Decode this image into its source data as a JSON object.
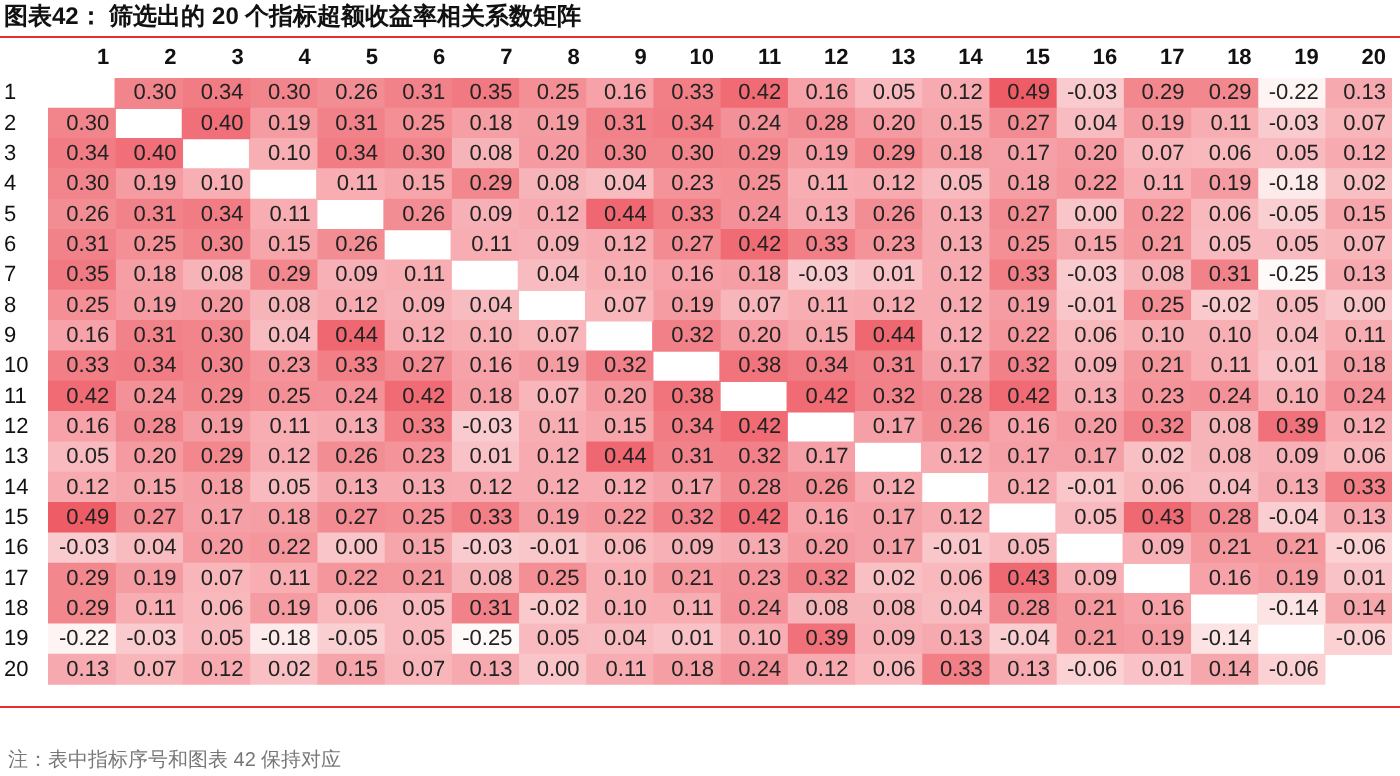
{
  "chart_data": {
    "type": "heatmap",
    "title": "图表42： 筛选出的 20 个指标超额收益率相关系数矩阵",
    "categories": [
      "1",
      "2",
      "3",
      "4",
      "5",
      "6",
      "7",
      "8",
      "9",
      "10",
      "11",
      "12",
      "13",
      "14",
      "15",
      "16",
      "17",
      "18",
      "19",
      "20"
    ],
    "y_categories": [
      "1",
      "2",
      "3",
      "4",
      "5",
      "6",
      "7",
      "8",
      "9",
      "10",
      "11",
      "12",
      "13",
      "14",
      "15",
      "16",
      "17",
      "18",
      "19",
      "20"
    ],
    "cells": [
      [
        null,
        0.3,
        0.34,
        0.3,
        0.26,
        0.31,
        0.35,
        0.25,
        0.16,
        0.33,
        0.42,
        0.16,
        0.05,
        0.12,
        0.49,
        -0.03,
        0.29,
        0.29,
        -0.22,
        0.13
      ],
      [
        0.3,
        null,
        0.4,
        0.19,
        0.31,
        0.25,
        0.18,
        0.19,
        0.31,
        0.34,
        0.24,
        0.28,
        0.2,
        0.15,
        0.27,
        0.04,
        0.19,
        0.11,
        -0.03,
        0.07
      ],
      [
        0.34,
        0.4,
        null,
        0.1,
        0.34,
        0.3,
        0.08,
        0.2,
        0.3,
        0.3,
        0.29,
        0.19,
        0.29,
        0.18,
        0.17,
        0.2,
        0.07,
        0.06,
        0.05,
        0.12
      ],
      [
        0.3,
        0.19,
        0.1,
        null,
        0.11,
        0.15,
        0.29,
        0.08,
        0.04,
        0.23,
        0.25,
        0.11,
        0.12,
        0.05,
        0.18,
        0.22,
        0.11,
        0.19,
        -0.18,
        0.02
      ],
      [
        0.26,
        0.31,
        0.34,
        0.11,
        null,
        0.26,
        0.09,
        0.12,
        0.44,
        0.33,
        0.24,
        0.13,
        0.26,
        0.13,
        0.27,
        0.0,
        0.22,
        0.06,
        -0.05,
        0.15
      ],
      [
        0.31,
        0.25,
        0.3,
        0.15,
        0.26,
        null,
        0.11,
        0.09,
        0.12,
        0.27,
        0.42,
        0.33,
        0.23,
        0.13,
        0.25,
        0.15,
        0.21,
        0.05,
        0.05,
        0.07
      ],
      [
        0.35,
        0.18,
        0.08,
        0.29,
        0.09,
        0.11,
        null,
        0.04,
        0.1,
        0.16,
        0.18,
        -0.03,
        0.01,
        0.12,
        0.33,
        -0.03,
        0.08,
        0.31,
        -0.25,
        0.13
      ],
      [
        0.25,
        0.19,
        0.2,
        0.08,
        0.12,
        0.09,
        0.04,
        null,
        0.07,
        0.19,
        0.07,
        0.11,
        0.12,
        0.12,
        0.19,
        -0.01,
        0.25,
        -0.02,
        0.05,
        0.0
      ],
      [
        0.16,
        0.31,
        0.3,
        0.04,
        0.44,
        0.12,
        0.1,
        0.07,
        null,
        0.32,
        0.2,
        0.15,
        0.44,
        0.12,
        0.22,
        0.06,
        0.1,
        0.1,
        0.04,
        0.11
      ],
      [
        0.33,
        0.34,
        0.3,
        0.23,
        0.33,
        0.27,
        0.16,
        0.19,
        0.32,
        null,
        0.38,
        0.34,
        0.31,
        0.17,
        0.32,
        0.09,
        0.21,
        0.11,
        0.01,
        0.18
      ],
      [
        0.42,
        0.24,
        0.29,
        0.25,
        0.24,
        0.42,
        0.18,
        0.07,
        0.2,
        0.38,
        null,
        0.42,
        0.32,
        0.28,
        0.42,
        0.13,
        0.23,
        0.24,
        0.1,
        0.24
      ],
      [
        0.16,
        0.28,
        0.19,
        0.11,
        0.13,
        0.33,
        -0.03,
        0.11,
        0.15,
        0.34,
        0.42,
        null,
        0.17,
        0.26,
        0.16,
        0.2,
        0.32,
        0.08,
        0.39,
        0.12
      ],
      [
        0.05,
        0.2,
        0.29,
        0.12,
        0.26,
        0.23,
        0.01,
        0.12,
        0.44,
        0.31,
        0.32,
        0.17,
        null,
        0.12,
        0.17,
        0.17,
        0.02,
        0.08,
        0.09,
        0.06
      ],
      [
        0.12,
        0.15,
        0.18,
        0.05,
        0.13,
        0.13,
        0.12,
        0.12,
        0.12,
        0.17,
        0.28,
        0.26,
        0.12,
        null,
        0.12,
        -0.01,
        0.06,
        0.04,
        0.13,
        0.33
      ],
      [
        0.49,
        0.27,
        0.17,
        0.18,
        0.27,
        0.25,
        0.33,
        0.19,
        0.22,
        0.32,
        0.42,
        0.16,
        0.17,
        0.12,
        null,
        0.05,
        0.43,
        0.28,
        -0.04,
        0.13
      ],
      [
        -0.03,
        0.04,
        0.2,
        0.22,
        0.0,
        0.15,
        -0.03,
        -0.01,
        0.06,
        0.09,
        0.13,
        0.2,
        0.17,
        -0.01,
        0.05,
        null,
        0.09,
        0.21,
        0.21,
        -0.06
      ],
      [
        0.29,
        0.19,
        0.07,
        0.11,
        0.22,
        0.21,
        0.08,
        0.25,
        0.1,
        0.21,
        0.23,
        0.32,
        0.02,
        0.06,
        0.43,
        0.09,
        null,
        0.16,
        0.19,
        0.01
      ],
      [
        0.29,
        0.11,
        0.06,
        0.19,
        0.06,
        0.05,
        0.31,
        -0.02,
        0.1,
        0.11,
        0.24,
        0.08,
        0.08,
        0.04,
        0.28,
        0.21,
        0.16,
        null,
        -0.14,
        0.14
      ],
      [
        -0.22,
        -0.03,
        0.05,
        -0.18,
        -0.05,
        0.05,
        -0.25,
        0.05,
        0.04,
        0.01,
        0.1,
        0.39,
        0.09,
        0.13,
        -0.04,
        0.21,
        0.19,
        -0.14,
        null,
        -0.06
      ],
      [
        0.13,
        0.07,
        0.12,
        0.02,
        0.15,
        0.07,
        0.13,
        0.0,
        0.11,
        0.18,
        0.24,
        0.12,
        0.06,
        0.33,
        0.13,
        -0.06,
        0.01,
        0.14,
        -0.06,
        null
      ]
    ],
    "cell_labels": [
      [
        null,
        "0.30",
        "0.34",
        "0.30",
        "0.26",
        "0.31",
        "0.35",
        "0.25",
        "0.16",
        "0.33",
        "0.42",
        "0.16",
        "0.05",
        "0.12",
        "0.49",
        "-0.03",
        "0.29",
        "0.29",
        "-0.22",
        "0.13"
      ],
      [
        "0.30",
        null,
        "0.40",
        "0.19",
        "0.31",
        "0.25",
        "0.18",
        "0.19",
        "0.31",
        "0.34",
        "0.24",
        "0.28",
        "0.20",
        "0.15",
        "0.27",
        "0.04",
        "0.19",
        "0.11",
        "-0.03",
        "0.07"
      ],
      [
        "0.34",
        "0.40",
        null,
        "0.10",
        "0.34",
        "0.30",
        "0.08",
        "0.20",
        "0.30",
        "0.30",
        "0.29",
        "0.19",
        "0.29",
        "0.18",
        "0.17",
        "0.20",
        "0.07",
        "0.06",
        "0.05",
        "0.12"
      ],
      [
        "0.30",
        "0.19",
        "0.10",
        null,
        "0.11",
        "0.15",
        "0.29",
        "0.08",
        "0.04",
        "0.23",
        "0.25",
        "0.11",
        "0.12",
        "0.05",
        "0.18",
        "0.22",
        "0.11",
        "0.19",
        "-0.18",
        "0.02"
      ],
      [
        "0.26",
        "0.31",
        "0.34",
        "0.11",
        null,
        "0.26",
        "0.09",
        "0.12",
        "0.44",
        "0.33",
        "0.24",
        "0.13",
        "0.26",
        "0.13",
        "0.27",
        "0.00",
        "0.22",
        "0.06",
        "-0.05",
        "0.15"
      ],
      [
        "0.31",
        "0.25",
        "0.30",
        "0.15",
        "0.26",
        null,
        "0.11",
        "0.09",
        "0.12",
        "0.27",
        "0.42",
        "0.33",
        "0.23",
        "0.13",
        "0.25",
        "0.15",
        "0.21",
        "0.05",
        "0.05",
        "0.07"
      ],
      [
        "0.35",
        "0.18",
        "0.08",
        "0.29",
        "0.09",
        "0.11",
        null,
        "0.04",
        "0.10",
        "0.16",
        "0.18",
        "-0.03",
        "0.01",
        "0.12",
        "0.33",
        "-0.03",
        "0.08",
        "0.31",
        "-0.25",
        "0.13"
      ],
      [
        "0.25",
        "0.19",
        "0.20",
        "0.08",
        "0.12",
        "0.09",
        "0.04",
        null,
        "0.07",
        "0.19",
        "0.07",
        "0.11",
        "0.12",
        "0.12",
        "0.19",
        "-0.01",
        "0.25",
        "-0.02",
        "0.05",
        "0.00"
      ],
      [
        "0.16",
        "0.31",
        "0.30",
        "0.04",
        "0.44",
        "0.12",
        "0.10",
        "0.07",
        null,
        "0.32",
        "0.20",
        "0.15",
        "0.44",
        "0.12",
        "0.22",
        "0.06",
        "0.10",
        "0.10",
        "0.04",
        "0.11"
      ],
      [
        "0.33",
        "0.34",
        "0.30",
        "0.23",
        "0.33",
        "0.27",
        "0.16",
        "0.19",
        "0.32",
        null,
        "0.38",
        "0.34",
        "0.31",
        "0.17",
        "0.32",
        "0.09",
        "0.21",
        "0.11",
        "0.01",
        "0.18"
      ],
      [
        "0.42",
        "0.24",
        "0.29",
        "0.25",
        "0.24",
        "0.42",
        "0.18",
        "0.07",
        "0.20",
        "0.38",
        null,
        "0.42",
        "0.32",
        "0.28",
        "0.42",
        "0.13",
        "0.23",
        "0.24",
        "0.10",
        "0.24"
      ],
      [
        "0.16",
        "0.28",
        "0.19",
        "0.11",
        "0.13",
        "0.33",
        "-0.03",
        "0.11",
        "0.15",
        "0.34",
        "0.42",
        null,
        "0.17",
        "0.26",
        "0.16",
        "0.20",
        "0.32",
        "0.08",
        "0.39",
        "0.12"
      ],
      [
        "0.05",
        "0.20",
        "0.29",
        "0.12",
        "0.26",
        "0.23",
        "0.01",
        "0.12",
        "0.44",
        "0.31",
        "0.32",
        "0.17",
        null,
        "0.12",
        "0.17",
        "0.17",
        "0.02",
        "0.08",
        "0.09",
        "0.06"
      ],
      [
        "0.12",
        "0.15",
        "0.18",
        "0.05",
        "0.13",
        "0.13",
        "0.12",
        "0.12",
        "0.12",
        "0.17",
        "0.28",
        "0.26",
        "0.12",
        null,
        "0.12",
        "-0.01",
        "0.06",
        "0.04",
        "0.13",
        "0.33"
      ],
      [
        "0.49",
        "0.27",
        "0.17",
        "0.18",
        "0.27",
        "0.25",
        "0.33",
        "0.19",
        "0.22",
        "0.32",
        "0.42",
        "0.16",
        "0.17",
        "0.12",
        null,
        "0.05",
        "0.43",
        "0.28",
        "-0.04",
        "0.13"
      ],
      [
        "-0.03",
        "0.04",
        "0.20",
        "0.22",
        "0.00",
        "0.15",
        "-0.03",
        "-0.01",
        "0.06",
        "0.09",
        "0.13",
        "0.20",
        "0.17",
        "-0.01",
        "0.05",
        null,
        "0.09",
        "0.21",
        "0.21",
        "-0.06"
      ],
      [
        "0.29",
        "0.19",
        "0.07",
        "0.11",
        "0.22",
        "0.21",
        "0.08",
        "0.25",
        "0.10",
        "0.21",
        "0.23",
        "0.32",
        "0.02",
        "0.06",
        "0.43",
        "0.09",
        null,
        "0.16",
        "0.19",
        "0.01"
      ],
      [
        "0.29",
        "0.11",
        "0.06",
        "0.19",
        "0.06",
        "0.05",
        "0.31",
        "-0.02",
        "0.10",
        "0.11",
        "0.24",
        "0.08",
        "0.08",
        "0.04",
        "0.28",
        "0.21",
        "0.16",
        null,
        "-0.14",
        "0.14"
      ],
      [
        "-0.22",
        "-0.03",
        "0.05",
        "-0.18",
        "-0.05",
        "0.05",
        "-0.25",
        "0.05",
        "0.04",
        "0.01",
        "0.10",
        "0.39",
        "0.09",
        "0.13",
        "-0.04",
        "0.21",
        "0.19",
        "-0.14",
        null,
        "-0.06"
      ],
      [
        "0.13",
        "0.07",
        "0.12",
        "0.02",
        "0.15",
        "0.07",
        "0.13",
        "0.00",
        "0.11",
        "0.18",
        "0.24",
        "0.12",
        "0.06",
        "0.33",
        "0.13",
        "-0.06",
        "0.01",
        "0.14",
        "-0.06",
        null
      ]
    ],
    "annotations": [
      "注：表中指标序号和图表 42 保持对应"
    ]
  }
}
